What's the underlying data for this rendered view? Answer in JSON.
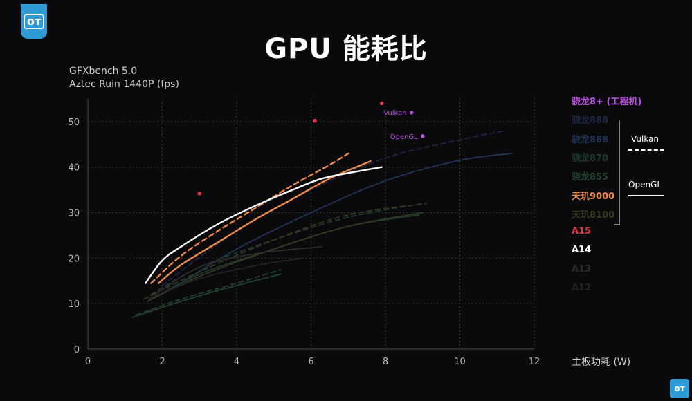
{
  "header": {
    "title": "GPU 能耗比",
    "subtitle_line1": "GFXbench 5.0",
    "subtitle_line2": "Aztec Ruin 1440P (fps)",
    "x_unit_label": "主板功耗 (W)"
  },
  "legend": {
    "vulkan_label": "Vulkan",
    "opengl_label": "OpenGL",
    "items": [
      {
        "label": "骁龙8+ (工程机)",
        "color": "#b94fe0"
      },
      {
        "label": "骁龙888",
        "color": "#1e2747"
      },
      {
        "label": "骁龙888",
        "color": "#1f3356"
      },
      {
        "label": "骁龙870",
        "color": "#1f3a32"
      },
      {
        "label": "骁龙855",
        "color": "#22422c"
      },
      {
        "label": "天玑9000",
        "color": "#f08a4b"
      },
      {
        "label": "天玑8100",
        "color": "#343a1c"
      },
      {
        "label": "A15",
        "color": "#e03a4a"
      },
      {
        "label": "A14",
        "color": "#ffffff"
      },
      {
        "label": "A13",
        "color": "#2a2a2a"
      },
      {
        "label": "A12",
        "color": "#222222"
      }
    ]
  },
  "chart_data": {
    "type": "line",
    "xlim": [
      0,
      12
    ],
    "ylim": [
      0,
      55
    ],
    "x_ticks": [
      "0",
      "2",
      "4",
      "6",
      "8",
      "10",
      "12"
    ],
    "y_ticks": [
      "0",
      "10",
      "20",
      "30",
      "40",
      "50"
    ],
    "grid": true,
    "annotations": [
      {
        "text": "Vulkan",
        "x": 8.7,
        "y": 52,
        "color": "#b94fe0"
      },
      {
        "text": "OpenGL",
        "x": 9.0,
        "y": 46.8,
        "color": "#b94fe0"
      }
    ],
    "series": [
      {
        "name": "A15",
        "kind": "scatter",
        "color": "#e03a4a",
        "points": [
          [
            3.0,
            34.2
          ],
          [
            6.1,
            50.2
          ],
          [
            7.9,
            54.0
          ]
        ]
      },
      {
        "name": "骁龙8+ (工程机)",
        "kind": "scatter",
        "color": "#b94fe0",
        "points": [
          [
            8.7,
            52.0
          ],
          [
            9.0,
            46.8
          ]
        ]
      },
      {
        "name": "骁龙888",
        "api": "Vulkan",
        "dashed": true,
        "color": "#1e2747",
        "points": [
          [
            2.0,
            14
          ],
          [
            4,
            26
          ],
          [
            6,
            35
          ],
          [
            8,
            42
          ],
          [
            10,
            46
          ],
          [
            11.2,
            48
          ]
        ]
      },
      {
        "name": "骁龙888",
        "api": "OpenGL",
        "dashed": false,
        "color": "#1f3356",
        "points": [
          [
            2.2,
            13
          ],
          [
            4,
            22
          ],
          [
            6,
            30
          ],
          [
            8,
            37
          ],
          [
            10,
            41.5
          ],
          [
            11.4,
            43
          ]
        ]
      },
      {
        "name": "骁龙870",
        "api": "Vulkan",
        "dashed": true,
        "color": "#1f3a32",
        "points": [
          [
            1.7,
            12
          ],
          [
            3,
            18
          ],
          [
            5,
            24
          ],
          [
            7,
            29
          ],
          [
            9,
            32
          ]
        ]
      },
      {
        "name": "骁龙870",
        "api": "OpenGL",
        "dashed": false,
        "color": "#1f3a32",
        "points": [
          [
            1.7,
            11
          ],
          [
            3,
            16.5
          ],
          [
            5,
            22
          ],
          [
            7,
            27
          ],
          [
            8.9,
            29.5
          ]
        ]
      },
      {
        "name": "骁龙855",
        "api": "Vulkan",
        "dashed": true,
        "color": "#22422c",
        "points": [
          [
            1.3,
            7.5
          ],
          [
            2.5,
            11
          ],
          [
            4,
            14.5
          ],
          [
            5.2,
            17.5
          ]
        ]
      },
      {
        "name": "骁龙855",
        "api": "OpenGL",
        "dashed": false,
        "color": "#22422c",
        "points": [
          [
            1.2,
            7
          ],
          [
            2.5,
            10.5
          ],
          [
            4,
            14
          ],
          [
            5.2,
            16.5
          ]
        ]
      },
      {
        "name": "天玑8100",
        "api": "Vulkan",
        "dashed": true,
        "color": "#343a1c",
        "points": [
          [
            1.5,
            11
          ],
          [
            3,
            17
          ],
          [
            5,
            24
          ],
          [
            7,
            29.5
          ],
          [
            9.1,
            32
          ]
        ]
      },
      {
        "name": "天玑8100",
        "api": "OpenGL",
        "dashed": false,
        "color": "#343a1c",
        "points": [
          [
            1.6,
            10.5
          ],
          [
            3,
            16
          ],
          [
            5,
            22
          ],
          [
            7,
            27
          ],
          [
            9,
            30
          ]
        ]
      },
      {
        "name": "A13",
        "api": "OpenGL",
        "dashed": false,
        "color": "#2a2a2a",
        "points": [
          [
            1.8,
            12
          ],
          [
            3,
            18
          ],
          [
            4.5,
            21
          ],
          [
            6.3,
            22.5
          ]
        ]
      },
      {
        "name": "A12",
        "api": "OpenGL",
        "dashed": false,
        "color": "#222222",
        "points": [
          [
            1.6,
            11
          ],
          [
            3,
            15.5
          ],
          [
            4.6,
            18.5
          ],
          [
            5.8,
            20
          ]
        ]
      },
      {
        "name": "天玑9000",
        "api": "Vulkan",
        "dashed": true,
        "color": "#f08a4b",
        "points": [
          [
            1.7,
            14.5
          ],
          [
            2.5,
            20.5
          ],
          [
            3.5,
            26
          ],
          [
            4.5,
            31
          ],
          [
            5.5,
            36
          ],
          [
            6.5,
            40.5
          ],
          [
            7,
            43
          ]
        ]
      },
      {
        "name": "天玑9000",
        "api": "OpenGL",
        "dashed": false,
        "color": "#f08a4b",
        "points": [
          [
            1.9,
            14.5
          ],
          [
            2.5,
            18.5
          ],
          [
            3.5,
            23.5
          ],
          [
            4.5,
            28.5
          ],
          [
            5.5,
            33
          ],
          [
            6.5,
            37.5
          ],
          [
            7.6,
            41.3
          ]
        ]
      },
      {
        "name": "A14",
        "api": "OpenGL",
        "dashed": false,
        "color": "#ffffff",
        "points": [
          [
            1.55,
            14.5
          ],
          [
            2,
            19.5
          ],
          [
            2.5,
            22.5
          ],
          [
            3.5,
            27.5
          ],
          [
            4.5,
            31.5
          ],
          [
            5.5,
            35
          ],
          [
            6.3,
            37.5
          ],
          [
            7.2,
            39
          ],
          [
            7.9,
            40
          ]
        ]
      }
    ]
  }
}
